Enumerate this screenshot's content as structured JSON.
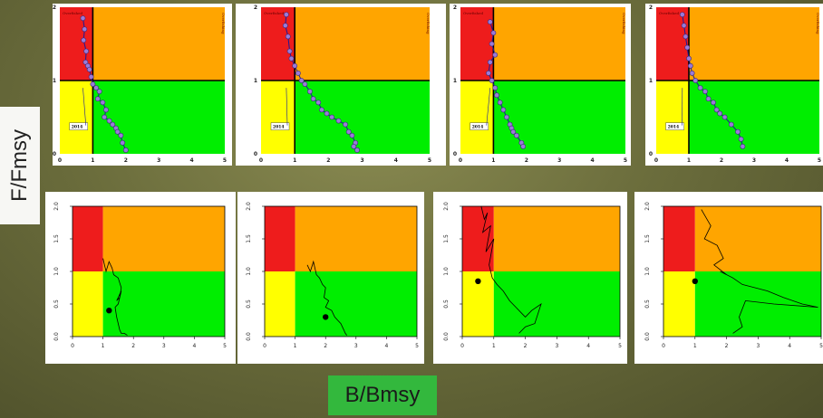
{
  "axes": {
    "ylabel": "F/Fmsy",
    "xlabel": "B/Bmsy"
  },
  "colors": {
    "overfished": "#ee1c1c",
    "overfishing": "#ffa500",
    "healthy": "#00ee00",
    "recovering": "#ffff00",
    "trajectory": "#1a1a9a",
    "marker": "#9a7ad8"
  },
  "top_row_labels": {
    "overfished": "Overfished",
    "overfishing": "Overfishing",
    "year": "2014"
  },
  "chart_data": [
    {
      "type": "scatter",
      "panel": "top-1",
      "xlim": [
        0,
        5
      ],
      "ylim": [
        0,
        2
      ],
      "x_ticks": [
        "0",
        "1",
        "2",
        "3",
        "4",
        "5"
      ],
      "y_ticks": [
        "0",
        "1",
        "2"
      ],
      "series": [
        {
          "x": [
            0.7,
            0.75,
            0.72,
            0.8,
            0.78,
            0.85,
            0.9,
            0.95,
            1.0,
            1.1,
            1.2,
            1.15,
            1.3,
            1.4,
            1.35,
            1.5,
            1.6,
            1.7,
            1.75,
            1.85,
            1.9,
            2.0
          ],
          "y": [
            1.85,
            1.7,
            1.55,
            1.4,
            1.25,
            1.2,
            1.15,
            1.05,
            0.95,
            0.9,
            0.85,
            0.75,
            0.7,
            0.6,
            0.5,
            0.45,
            0.4,
            0.35,
            0.3,
            0.25,
            0.15,
            0.05
          ]
        }
      ],
      "marker_year": "2014"
    },
    {
      "type": "scatter",
      "panel": "top-2",
      "xlim": [
        0,
        5
      ],
      "ylim": [
        0,
        2
      ],
      "x_ticks": [
        "0",
        "1",
        "2",
        "3",
        "4",
        "5"
      ],
      "y_ticks": [
        "0",
        "1",
        "2"
      ],
      "series": [
        {
          "x": [
            0.75,
            0.72,
            0.8,
            0.85,
            0.9,
            1.0,
            1.1,
            1.2,
            1.3,
            1.45,
            1.55,
            1.7,
            1.8,
            1.95,
            2.1,
            2.3,
            2.5,
            2.6,
            2.7,
            2.8,
            2.75,
            2.85
          ],
          "y": [
            1.9,
            1.75,
            1.6,
            1.4,
            1.3,
            1.2,
            1.1,
            1.0,
            0.95,
            0.85,
            0.75,
            0.7,
            0.6,
            0.55,
            0.5,
            0.45,
            0.4,
            0.3,
            0.25,
            0.15,
            0.1,
            0.05
          ]
        }
      ],
      "marker_year": "2014"
    },
    {
      "type": "scatter",
      "panel": "top-3",
      "xlim": [
        0,
        5
      ],
      "ylim": [
        0,
        2
      ],
      "x_ticks": [
        "0",
        "1",
        "2",
        "3",
        "4",
        "5"
      ],
      "y_ticks": [
        "0",
        "1",
        "2"
      ],
      "series": [
        {
          "x": [
            0.9,
            1.0,
            0.95,
            1.05,
            0.9,
            0.85,
            0.95,
            1.05,
            1.1,
            1.2,
            1.3,
            1.4,
            1.5,
            1.55,
            1.6,
            1.7,
            1.85,
            1.9
          ],
          "y": [
            1.8,
            1.65,
            1.5,
            1.35,
            1.25,
            1.1,
            1.0,
            0.9,
            0.8,
            0.7,
            0.6,
            0.5,
            0.4,
            0.35,
            0.3,
            0.25,
            0.15,
            0.1
          ]
        }
      ],
      "marker_year": "2014"
    },
    {
      "type": "scatter",
      "panel": "top-4",
      "xlim": [
        0,
        5
      ],
      "ylim": [
        0,
        2
      ],
      "x_ticks": [
        "0",
        "1",
        "2",
        "3",
        "4",
        "5"
      ],
      "y_ticks": [
        "0",
        "1",
        "2"
      ],
      "series": [
        {
          "x": [
            0.8,
            0.85,
            0.9,
            0.95,
            1.0,
            1.05,
            1.1,
            1.2,
            1.35,
            1.5,
            1.6,
            1.75,
            1.85,
            1.95,
            2.1,
            2.3,
            2.5,
            2.6,
            2.65
          ],
          "y": [
            1.9,
            1.75,
            1.6,
            1.45,
            1.3,
            1.2,
            1.1,
            1.0,
            0.9,
            0.85,
            0.75,
            0.7,
            0.6,
            0.55,
            0.5,
            0.4,
            0.3,
            0.2,
            0.1
          ]
        }
      ],
      "marker_year": "2014"
    },
    {
      "type": "line",
      "panel": "bottom-1",
      "xlim": [
        0,
        5
      ],
      "ylim": [
        0,
        2
      ],
      "x_ticks": [
        "0",
        "1",
        "2",
        "3",
        "4",
        "5"
      ],
      "y_ticks": [
        "0.0",
        "0.5",
        "1.0",
        "1.5",
        "2.0"
      ],
      "series": [
        {
          "x": [
            1.0,
            1.05,
            1.1,
            1.2,
            1.3,
            1.35,
            1.5,
            1.6,
            1.55,
            1.45,
            1.6,
            1.5,
            1.4,
            1.45,
            1.5,
            1.55,
            1.6,
            1.7,
            1.8
          ],
          "y": [
            1.2,
            1.1,
            1.0,
            1.15,
            1.05,
            0.95,
            0.9,
            0.75,
            0.6,
            0.55,
            0.7,
            0.5,
            0.45,
            0.3,
            0.2,
            0.1,
            0.05,
            0.05,
            0.02
          ]
        }
      ],
      "current_point": {
        "x": 1.2,
        "y": 0.4
      }
    },
    {
      "type": "line",
      "panel": "bottom-2",
      "xlim": [
        0,
        5
      ],
      "ylim": [
        0,
        2
      ],
      "x_ticks": [
        "0",
        "1",
        "2",
        "3",
        "4",
        "5"
      ],
      "y_ticks": [
        "0.0",
        "0.5",
        "1.0",
        "1.5",
        "2.0"
      ],
      "series": [
        {
          "x": [
            1.4,
            1.5,
            1.6,
            1.7,
            1.8,
            1.9,
            2.0,
            1.95,
            2.1,
            2.0,
            2.2,
            2.3,
            2.4,
            2.5,
            2.6,
            2.65,
            2.7
          ],
          "y": [
            1.1,
            1.0,
            1.15,
            0.95,
            0.9,
            0.8,
            0.75,
            0.6,
            0.55,
            0.45,
            0.4,
            0.3,
            0.25,
            0.2,
            0.1,
            0.05,
            0.02
          ]
        }
      ],
      "current_point": {
        "x": 2.0,
        "y": 0.3
      }
    },
    {
      "type": "line",
      "panel": "bottom-3",
      "xlim": [
        0,
        5
      ],
      "ylim": [
        0,
        2
      ],
      "x_ticks": [
        "0",
        "1",
        "2",
        "3",
        "4",
        "5"
      ],
      "y_ticks": [
        "0.0",
        "0.5",
        "1.0",
        "1.5",
        "2.0"
      ],
      "series": [
        {
          "x": [
            0.6,
            0.7,
            0.8,
            0.65,
            0.9,
            0.75,
            1.0,
            0.85,
            0.95,
            1.1,
            1.3,
            1.5,
            1.7,
            1.9,
            2.0,
            2.2,
            2.5,
            2.3,
            2.0,
            1.8
          ],
          "y": [
            2.0,
            1.8,
            1.9,
            1.6,
            1.7,
            1.3,
            1.5,
            1.1,
            0.9,
            0.8,
            0.7,
            0.55,
            0.45,
            0.35,
            0.3,
            0.4,
            0.5,
            0.2,
            0.15,
            0.05
          ]
        }
      ],
      "current_point": {
        "x": 0.5,
        "y": 0.85
      }
    },
    {
      "type": "line",
      "panel": "bottom-4",
      "xlim": [
        0,
        5
      ],
      "ylim": [
        0,
        2
      ],
      "x_ticks": [
        "0",
        "1",
        "2",
        "3",
        "4",
        "5"
      ],
      "y_ticks": [
        "0.0",
        "0.5",
        "1.0",
        "1.5",
        "2.0"
      ],
      "series": [
        {
          "x": [
            1.2,
            1.5,
            1.3,
            1.7,
            1.9,
            1.6,
            2.0,
            1.8,
            2.2,
            2.5,
            2.9,
            3.3,
            3.8,
            4.4,
            4.9,
            3.5,
            2.6,
            2.4,
            2.5,
            2.2
          ],
          "y": [
            1.95,
            1.7,
            1.5,
            1.4,
            1.2,
            1.1,
            0.95,
            1.0,
            0.9,
            0.8,
            0.75,
            0.7,
            0.6,
            0.5,
            0.45,
            0.5,
            0.55,
            0.3,
            0.15,
            0.05
          ]
        }
      ],
      "current_point": {
        "x": 1.0,
        "y": 0.85
      }
    }
  ]
}
